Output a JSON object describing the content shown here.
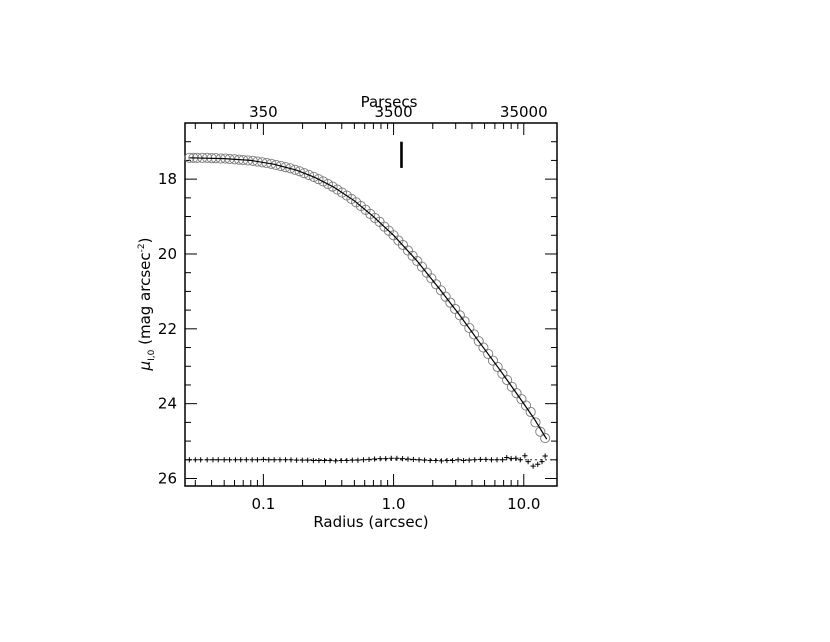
{
  "chart_data": {
    "type": "scatter",
    "title": "",
    "xlabel": "Radius (arcsec)",
    "top_xlabel": "Parsecs",
    "ylabel_main": "μ",
    "ylabel_sub": "I,0",
    "ylabel_rest": " (mag arcsec",
    "ylabel_sup": "-2",
    "ylabel_close": ")",
    "x_scale": "log",
    "xlim": [
      0.025,
      18
    ],
    "ylim": [
      26.2,
      16.5
    ],
    "x_ticks": [
      {
        "value": 0.1,
        "label": "0.1"
      },
      {
        "value": 1.0,
        "label": "1.0"
      },
      {
        "value": 10.0,
        "label": "10.0"
      }
    ],
    "top_ticks": [
      {
        "value": 0.1,
        "label": "350"
      },
      {
        "value": 1.0,
        "label": "3500"
      },
      {
        "value": 10.0,
        "label": "35000"
      }
    ],
    "y_ticks": [
      {
        "value": 18,
        "label": "18"
      },
      {
        "value": 20,
        "label": "20"
      },
      {
        "value": 22,
        "label": "22"
      },
      {
        "value": 24,
        "label": "24"
      },
      {
        "value": 26,
        "label": "26"
      }
    ],
    "marker_line": {
      "x": 1.15,
      "y": [
        17.0,
        17.7
      ]
    },
    "residual_baseline": 25.5,
    "series": [
      {
        "marker": "open-circle",
        "points": [
          {
            "x": 0.027,
            "y": 17.43
          },
          {
            "x": 0.029,
            "y": 17.43
          },
          {
            "x": 0.031,
            "y": 17.43
          },
          {
            "x": 0.034,
            "y": 17.43
          },
          {
            "x": 0.037,
            "y": 17.43
          },
          {
            "x": 0.04,
            "y": 17.44
          },
          {
            "x": 0.043,
            "y": 17.44
          },
          {
            "x": 0.047,
            "y": 17.45
          },
          {
            "x": 0.051,
            "y": 17.45
          },
          {
            "x": 0.055,
            "y": 17.46
          },
          {
            "x": 0.06,
            "y": 17.47
          },
          {
            "x": 0.065,
            "y": 17.48
          },
          {
            "x": 0.07,
            "y": 17.49
          },
          {
            "x": 0.076,
            "y": 17.5
          },
          {
            "x": 0.083,
            "y": 17.51
          },
          {
            "x": 0.09,
            "y": 17.53
          },
          {
            "x": 0.098,
            "y": 17.55
          },
          {
            "x": 0.106,
            "y": 17.57
          },
          {
            "x": 0.115,
            "y": 17.59
          },
          {
            "x": 0.125,
            "y": 17.62
          },
          {
            "x": 0.136,
            "y": 17.65
          },
          {
            "x": 0.148,
            "y": 17.68
          },
          {
            "x": 0.161,
            "y": 17.71
          },
          {
            "x": 0.175,
            "y": 17.75
          },
          {
            "x": 0.19,
            "y": 17.79
          },
          {
            "x": 0.206,
            "y": 17.84
          },
          {
            "x": 0.224,
            "y": 17.89
          },
          {
            "x": 0.244,
            "y": 17.94
          },
          {
            "x": 0.265,
            "y": 18.0
          },
          {
            "x": 0.288,
            "y": 18.06
          },
          {
            "x": 0.313,
            "y": 18.13
          },
          {
            "x": 0.34,
            "y": 18.2
          },
          {
            "x": 0.37,
            "y": 18.28
          },
          {
            "x": 0.402,
            "y": 18.36
          },
          {
            "x": 0.437,
            "y": 18.44
          },
          {
            "x": 0.475,
            "y": 18.53
          },
          {
            "x": 0.516,
            "y": 18.62
          },
          {
            "x": 0.561,
            "y": 18.72
          },
          {
            "x": 0.61,
            "y": 18.82
          },
          {
            "x": 0.663,
            "y": 18.93
          },
          {
            "x": 0.72,
            "y": 19.04
          },
          {
            "x": 0.78,
            "y": 19.14
          },
          {
            "x": 0.85,
            "y": 19.27
          },
          {
            "x": 0.92,
            "y": 19.38
          },
          {
            "x": 1.0,
            "y": 19.5
          },
          {
            "x": 1.09,
            "y": 19.64
          },
          {
            "x": 1.18,
            "y": 19.76
          },
          {
            "x": 1.29,
            "y": 19.91
          },
          {
            "x": 1.4,
            "y": 20.05
          },
          {
            "x": 1.52,
            "y": 20.19
          },
          {
            "x": 1.65,
            "y": 20.34
          },
          {
            "x": 1.8,
            "y": 20.5
          },
          {
            "x": 1.95,
            "y": 20.65
          },
          {
            "x": 2.12,
            "y": 20.81
          },
          {
            "x": 2.31,
            "y": 20.97
          },
          {
            "x": 2.51,
            "y": 21.14
          },
          {
            "x": 2.73,
            "y": 21.3
          },
          {
            "x": 2.97,
            "y": 21.47
          },
          {
            "x": 3.23,
            "y": 21.64
          },
          {
            "x": 3.51,
            "y": 21.8
          },
          {
            "x": 3.82,
            "y": 21.98
          },
          {
            "x": 4.15,
            "y": 22.15
          },
          {
            "x": 4.51,
            "y": 22.33
          },
          {
            "x": 4.9,
            "y": 22.5
          },
          {
            "x": 5.33,
            "y": 22.67
          },
          {
            "x": 5.8,
            "y": 22.85
          },
          {
            "x": 6.3,
            "y": 23.02
          },
          {
            "x": 6.85,
            "y": 23.2
          },
          {
            "x": 7.45,
            "y": 23.37
          },
          {
            "x": 8.1,
            "y": 23.55
          },
          {
            "x": 8.8,
            "y": 23.72
          },
          {
            "x": 9.6,
            "y": 23.88
          },
          {
            "x": 10.4,
            "y": 24.05
          },
          {
            "x": 11.3,
            "y": 24.22
          },
          {
            "x": 12.3,
            "y": 24.5
          },
          {
            "x": 13.4,
            "y": 24.75
          },
          {
            "x": 14.6,
            "y": 24.92
          }
        ]
      },
      {
        "marker": "line",
        "points": [
          {
            "x": 0.027,
            "y": 17.43
          },
          {
            "x": 0.05,
            "y": 17.45
          },
          {
            "x": 0.08,
            "y": 17.5
          },
          {
            "x": 0.12,
            "y": 17.6
          },
          {
            "x": 0.18,
            "y": 17.76
          },
          {
            "x": 0.25,
            "y": 17.96
          },
          {
            "x": 0.35,
            "y": 18.22
          },
          {
            "x": 0.5,
            "y": 18.58
          },
          {
            "x": 0.7,
            "y": 19.0
          },
          {
            "x": 1.0,
            "y": 19.5
          },
          {
            "x": 1.5,
            "y": 20.17
          },
          {
            "x": 2.2,
            "y": 20.89
          },
          {
            "x": 3.2,
            "y": 21.62
          },
          {
            "x": 4.5,
            "y": 22.33
          },
          {
            "x": 6.5,
            "y": 23.08
          },
          {
            "x": 9.0,
            "y": 23.77
          },
          {
            "x": 12.0,
            "y": 24.4
          },
          {
            "x": 15.0,
            "y": 24.95
          }
        ]
      },
      {
        "marker": "plus",
        "points": [
          {
            "x": 0.027,
            "y": 25.5
          },
          {
            "x": 0.03,
            "y": 25.5
          },
          {
            "x": 0.033,
            "y": 25.5
          },
          {
            "x": 0.037,
            "y": 25.5
          },
          {
            "x": 0.041,
            "y": 25.5
          },
          {
            "x": 0.045,
            "y": 25.5
          },
          {
            "x": 0.05,
            "y": 25.5
          },
          {
            "x": 0.055,
            "y": 25.5
          },
          {
            "x": 0.061,
            "y": 25.5
          },
          {
            "x": 0.067,
            "y": 25.5
          },
          {
            "x": 0.074,
            "y": 25.5
          },
          {
            "x": 0.082,
            "y": 25.5
          },
          {
            "x": 0.09,
            "y": 25.5
          },
          {
            "x": 0.1,
            "y": 25.49
          },
          {
            "x": 0.11,
            "y": 25.5
          },
          {
            "x": 0.121,
            "y": 25.5
          },
          {
            "x": 0.134,
            "y": 25.5
          },
          {
            "x": 0.148,
            "y": 25.5
          },
          {
            "x": 0.163,
            "y": 25.5
          },
          {
            "x": 0.18,
            "y": 25.51
          },
          {
            "x": 0.199,
            "y": 25.51
          },
          {
            "x": 0.219,
            "y": 25.51
          },
          {
            "x": 0.242,
            "y": 25.52
          },
          {
            "x": 0.267,
            "y": 25.52
          },
          {
            "x": 0.295,
            "y": 25.52
          },
          {
            "x": 0.325,
            "y": 25.52
          },
          {
            "x": 0.359,
            "y": 25.53
          },
          {
            "x": 0.396,
            "y": 25.52
          },
          {
            "x": 0.437,
            "y": 25.52
          },
          {
            "x": 0.482,
            "y": 25.51
          },
          {
            "x": 0.532,
            "y": 25.51
          },
          {
            "x": 0.587,
            "y": 25.5
          },
          {
            "x": 0.648,
            "y": 25.49
          },
          {
            "x": 0.715,
            "y": 25.48
          },
          {
            "x": 0.789,
            "y": 25.47
          },
          {
            "x": 0.87,
            "y": 25.47
          },
          {
            "x": 0.96,
            "y": 25.46
          },
          {
            "x": 1.06,
            "y": 25.46
          },
          {
            "x": 1.17,
            "y": 25.47
          },
          {
            "x": 1.29,
            "y": 25.48
          },
          {
            "x": 1.42,
            "y": 25.49
          },
          {
            "x": 1.57,
            "y": 25.5
          },
          {
            "x": 1.73,
            "y": 25.51
          },
          {
            "x": 1.91,
            "y": 25.52
          },
          {
            "x": 2.11,
            "y": 25.52
          },
          {
            "x": 2.33,
            "y": 25.53
          },
          {
            "x": 2.57,
            "y": 25.52
          },
          {
            "x": 2.84,
            "y": 25.52
          },
          {
            "x": 3.13,
            "y": 25.5
          },
          {
            "x": 3.45,
            "y": 25.52
          },
          {
            "x": 3.81,
            "y": 25.51
          },
          {
            "x": 4.2,
            "y": 25.5
          },
          {
            "x": 4.64,
            "y": 25.49
          },
          {
            "x": 5.12,
            "y": 25.49
          },
          {
            "x": 5.65,
            "y": 25.5
          },
          {
            "x": 6.23,
            "y": 25.5
          },
          {
            "x": 6.88,
            "y": 25.5
          },
          {
            "x": 7.4,
            "y": 25.44
          },
          {
            "x": 8.0,
            "y": 25.47
          },
          {
            "x": 8.7,
            "y": 25.46
          },
          {
            "x": 9.4,
            "y": 25.5
          },
          {
            "x": 10.2,
            "y": 25.39
          },
          {
            "x": 10.8,
            "y": 25.55
          },
          {
            "x": 11.8,
            "y": 25.67
          },
          {
            "x": 12.8,
            "y": 25.62
          },
          {
            "x": 13.8,
            "y": 25.55
          },
          {
            "x": 14.6,
            "y": 25.4
          }
        ]
      }
    ]
  }
}
